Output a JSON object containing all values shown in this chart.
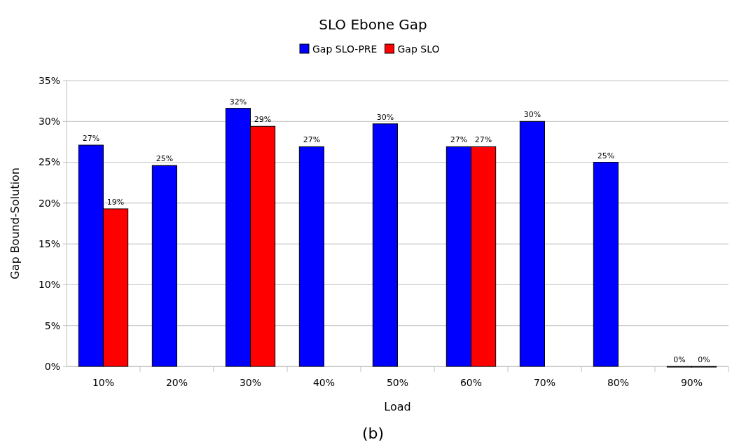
{
  "chart_data": {
    "type": "bar",
    "title": "SLO Ebone Gap",
    "xlabel": "Load",
    "ylabel": "Gap Bound-Solution",
    "annotations": [
      "(b)"
    ],
    "categories": [
      "10%",
      "20%",
      "30%",
      "40%",
      "50%",
      "60%",
      "70%",
      "80%",
      "90%"
    ],
    "series": [
      {
        "name": "Gap SLO-PRE",
        "color": "#0000ff",
        "values": [
          27.1,
          24.6,
          31.6,
          26.9,
          29.7,
          26.9,
          30.0,
          25.0,
          0
        ],
        "value_labels": [
          "27%",
          "25%",
          "32%",
          "27%",
          "30%",
          "27%",
          "30%",
          "25%",
          "0%"
        ]
      },
      {
        "name": "Gap SLO",
        "color": "#ff0000",
        "values": [
          19.3,
          null,
          29.4,
          null,
          null,
          26.9,
          null,
          null,
          0
        ],
        "value_labels": [
          "19%",
          null,
          "29%",
          null,
          null,
          "27%",
          null,
          null,
          "0%"
        ]
      }
    ],
    "ylim": [
      0,
      35
    ],
    "yticks": [
      {
        "value": 0,
        "label": "0%"
      },
      {
        "value": 5,
        "label": "5%"
      },
      {
        "value": 10,
        "label": "10%"
      },
      {
        "value": 15,
        "label": "15%"
      },
      {
        "value": 20,
        "label": "20%"
      },
      {
        "value": 25,
        "label": "25%"
      },
      {
        "value": 30,
        "label": "30%"
      },
      {
        "value": 35,
        "label": "35%"
      }
    ],
    "grid": "y",
    "legend": "top"
  }
}
